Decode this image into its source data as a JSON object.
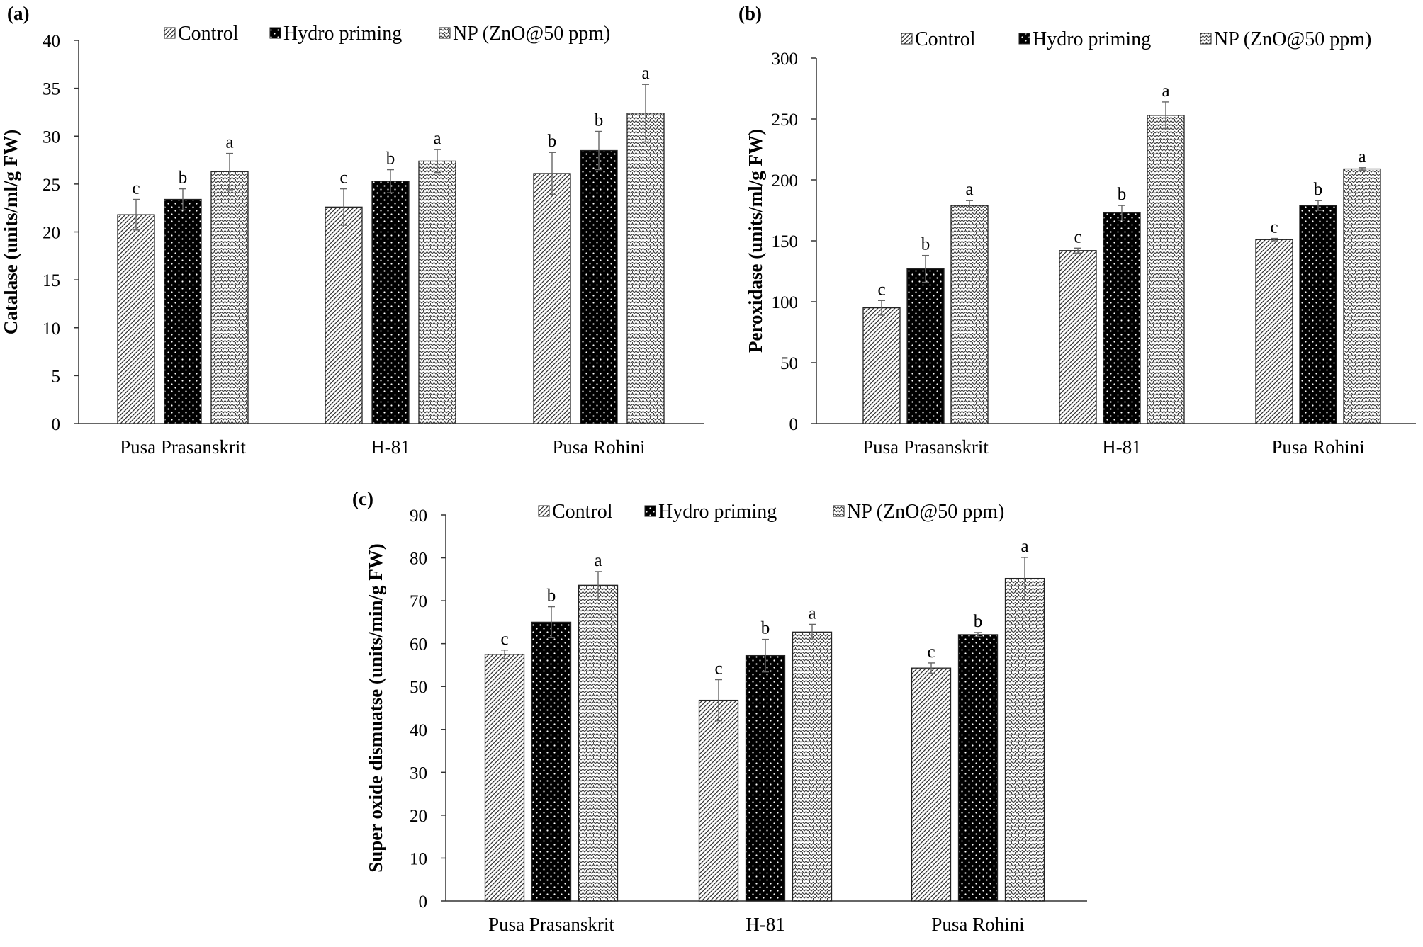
{
  "legend": [
    "Control",
    "Hydro priming",
    "NP (ZnO@50 ppm)"
  ],
  "chart_data": [
    {
      "panel": "(a)",
      "type": "bar",
      "ylabel": "Catalase (units/ml/g FW)",
      "xlabel": "",
      "categories": [
        "Pusa Prasanskrit",
        "H-81",
        "Pusa Rohini"
      ],
      "ylim": [
        0,
        40
      ],
      "yticks": [
        0,
        5,
        10,
        15,
        20,
        25,
        30,
        35,
        40
      ],
      "series": [
        {
          "name": "Control",
          "values": [
            21.8,
            22.6,
            26.1
          ],
          "errors": [
            1.6,
            1.9,
            2.2
          ],
          "letters": [
            "c",
            "c",
            "b"
          ]
        },
        {
          "name": "Hydro priming",
          "values": [
            23.4,
            25.3,
            28.5
          ],
          "errors": [
            1.1,
            1.2,
            2.0
          ],
          "letters": [
            "b",
            "b",
            "b"
          ]
        },
        {
          "name": "NP (ZnO@50 ppm)",
          "values": [
            26.3,
            27.4,
            32.4
          ],
          "errors": [
            1.9,
            1.2,
            3.0
          ],
          "letters": [
            "a",
            "a",
            "a"
          ]
        }
      ],
      "legend_position": "top",
      "grid": false
    },
    {
      "panel": "(b)",
      "type": "bar",
      "ylabel": "Peroxidase (units/ml/g FW)",
      "xlabel": "",
      "categories": [
        "Pusa Prasanskrit",
        "H-81",
        "Pusa Rohini"
      ],
      "ylim": [
        0,
        300
      ],
      "yticks": [
        0,
        50,
        100,
        150,
        200,
        250,
        300
      ],
      "series": [
        {
          "name": "Control",
          "values": [
            95,
            142,
            151
          ],
          "errors": [
            6,
            2,
            1
          ],
          "letters": [
            "c",
            "c",
            "c"
          ]
        },
        {
          "name": "Hydro priming",
          "values": [
            127,
            173,
            179
          ],
          "errors": [
            11,
            6,
            4
          ],
          "letters": [
            "b",
            "b",
            "b"
          ]
        },
        {
          "name": "NP (ZnO@50 ppm)",
          "values": [
            179,
            253,
            209
          ],
          "errors": [
            4,
            11,
            1
          ],
          "letters": [
            "a",
            "a",
            "a"
          ]
        }
      ],
      "legend_position": "top",
      "grid": false
    },
    {
      "panel": "(c)",
      "type": "bar",
      "ylabel": "Super oxide dismuatse (units/min/g FW)",
      "xlabel": "",
      "categories": [
        "Pusa Prasanskrit",
        "H-81",
        "Pusa Rohini"
      ],
      "ylim": [
        0,
        90
      ],
      "yticks": [
        0,
        10,
        20,
        30,
        40,
        50,
        60,
        70,
        80,
        90
      ],
      "series": [
        {
          "name": "Control",
          "values": [
            57.5,
            46.8,
            54.3
          ],
          "errors": [
            1.0,
            4.8,
            1.2
          ],
          "letters": [
            "c",
            "c",
            "c"
          ]
        },
        {
          "name": "Hydro priming",
          "values": [
            65.0,
            57.2,
            62.1
          ],
          "errors": [
            3.6,
            3.8,
            0.5
          ],
          "letters": [
            "b",
            "b",
            "b"
          ]
        },
        {
          "name": "NP (ZnO@50 ppm)",
          "values": [
            73.6,
            62.7,
            75.2
          ],
          "errors": [
            3.2,
            1.8,
            4.9
          ],
          "letters": [
            "a",
            "a",
            "a"
          ]
        }
      ],
      "legend_position": "top",
      "grid": false
    }
  ]
}
